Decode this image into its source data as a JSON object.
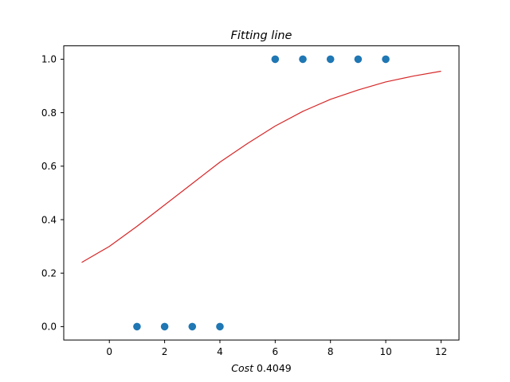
{
  "chart_data": {
    "type": "scatter",
    "title": "Fitting line",
    "xlabel": {
      "prefix": "Cost",
      "value": "0.4049"
    },
    "ylabel": "",
    "xlim": [
      -1.65,
      12.65
    ],
    "ylim": [
      -0.05,
      1.05
    ],
    "xticks": [
      {
        "value": 0,
        "label": "0"
      },
      {
        "value": 2,
        "label": "2"
      },
      {
        "value": 4,
        "label": "4"
      },
      {
        "value": 6,
        "label": "6"
      },
      {
        "value": 8,
        "label": "8"
      },
      {
        "value": 10,
        "label": "10"
      },
      {
        "value": 12,
        "label": "12"
      }
    ],
    "yticks": [
      {
        "value": 0.0,
        "label": "0.0"
      },
      {
        "value": 0.2,
        "label": "0.2"
      },
      {
        "value": 0.4,
        "label": "0.4"
      },
      {
        "value": 0.6,
        "label": "0.6"
      },
      {
        "value": 0.8,
        "label": "0.8"
      },
      {
        "value": 1.0,
        "label": "1.0"
      }
    ],
    "grid": false,
    "points": {
      "color": "#1f77b4",
      "x": [
        1,
        2,
        3,
        4,
        6,
        7,
        8,
        9,
        10
      ],
      "y": [
        0,
        0,
        0,
        0,
        1,
        1,
        1,
        1,
        1
      ]
    },
    "fit_line": {
      "color": "#d62728",
      "x": [
        -1,
        0,
        1,
        2,
        3,
        4,
        5,
        6,
        7,
        8,
        9,
        10,
        11,
        12
      ],
      "y": [
        0.24,
        0.3,
        0.375,
        0.455,
        0.535,
        0.615,
        0.685,
        0.75,
        0.805,
        0.85,
        0.885,
        0.915,
        0.937,
        0.955
      ]
    }
  }
}
